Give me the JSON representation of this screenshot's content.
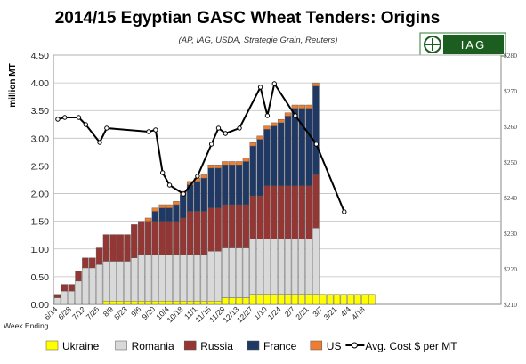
{
  "chart_data": {
    "type": "bar",
    "title": "2014/15 Egyptian GASC Wheat Tenders: Origins",
    "subtitle": "(AP, IAG, USDA, Strategie Grain, Reuters)",
    "logo_text": "IAG",
    "ylabel": "million MT",
    "xlabel": "Week Ending",
    "ylim": [
      0,
      4.5
    ],
    "y_ticks": [
      "0.00",
      "0.50",
      "1.00",
      "1.50",
      "2.00",
      "2.50",
      "3.00",
      "3.50",
      "4.00",
      "4.50"
    ],
    "y2lim": [
      210,
      280
    ],
    "y2_ticks": [
      "$210",
      "$220",
      "$230",
      "$240",
      "$250",
      "$260",
      "$270",
      "$280"
    ],
    "x_tick_labels": [
      "6/14",
      "6/28",
      "7/12",
      "7/26",
      "8/9",
      "8/23",
      "9/6",
      "9/20",
      "10/4",
      "10/18",
      "11/1",
      "11/15",
      "11/29",
      "12/13",
      "12/27",
      "1/10",
      "1/24",
      "2/7",
      "2/21",
      "3/7",
      "3/21",
      "4/4",
      "4/18"
    ],
    "grid": true,
    "legend_position": "bottom",
    "series": [
      {
        "name": "Ukraine",
        "color": "#ffff00",
        "values": [
          0,
          0,
          0,
          0,
          0,
          0,
          0,
          0.06,
          0.06,
          0.06,
          0.06,
          0.06,
          0.06,
          0.06,
          0.06,
          0.06,
          0.06,
          0.06,
          0.06,
          0.06,
          0.06,
          0.06,
          0.06,
          0.06,
          0.12,
          0.12,
          0.12,
          0.12,
          0.18,
          0.18,
          0.18,
          0.18,
          0.18,
          0.18,
          0.18,
          0.18,
          0.18,
          0.18,
          0.18,
          0.18,
          0.18,
          0.18,
          0.18,
          0.18,
          0.18,
          0.18
        ]
      },
      {
        "name": "Romania",
        "color": "#d9d9d9",
        "values": [
          0.12,
          0.24,
          0.24,
          0.42,
          0.66,
          0.66,
          0.72,
          0.72,
          0.72,
          0.72,
          0.72,
          0.78,
          0.84,
          0.84,
          0.84,
          0.84,
          0.84,
          0.84,
          0.84,
          0.84,
          0.84,
          0.84,
          0.9,
          0.9,
          0.9,
          0.9,
          0.9,
          0.9,
          1.0,
          1.0,
          1.0,
          1.0,
          1.0,
          1.0,
          1.0,
          1.0,
          1.0,
          1.2,
          0,
          0,
          0,
          0,
          0,
          0,
          0,
          0
        ]
      },
      {
        "name": "Russia",
        "color": "#943634",
        "values": [
          0.06,
          0.12,
          0.12,
          0.18,
          0.18,
          0.18,
          0.3,
          0.48,
          0.48,
          0.48,
          0.48,
          0.6,
          0.6,
          0.6,
          0.6,
          0.6,
          0.6,
          0.6,
          0.66,
          0.78,
          0.78,
          0.78,
          0.78,
          0.78,
          0.78,
          0.78,
          0.78,
          0.78,
          0.78,
          0.78,
          0.96,
          0.96,
          0.96,
          0.96,
          0.96,
          0.96,
          0.96,
          0.96,
          0,
          0,
          0,
          0,
          0,
          0,
          0,
          0
        ]
      },
      {
        "name": "France",
        "color": "#1f3864",
        "values": [
          0,
          0,
          0,
          0,
          0,
          0,
          0,
          0,
          0,
          0,
          0,
          0,
          0,
          0,
          0.18,
          0.24,
          0.24,
          0.3,
          0.42,
          0.48,
          0.54,
          0.6,
          0.72,
          0.72,
          0.72,
          0.72,
          0.72,
          0.78,
          0.9,
          1.02,
          1.02,
          1.08,
          1.14,
          1.26,
          1.4,
          1.4,
          1.4,
          1.6,
          0,
          0,
          0,
          0,
          0,
          0,
          0,
          0
        ]
      },
      {
        "name": "US",
        "color": "#ed7d31",
        "values": [
          0,
          0,
          0,
          0,
          0,
          0,
          0,
          0,
          0,
          0,
          0,
          0,
          0,
          0.06,
          0.06,
          0.06,
          0.06,
          0.06,
          0.06,
          0.06,
          0.06,
          0.06,
          0.06,
          0.06,
          0.06,
          0.06,
          0.06,
          0.06,
          0.06,
          0.06,
          0.06,
          0.06,
          0.06,
          0.06,
          0.06,
          0.06,
          0.06,
          0.06,
          0,
          0,
          0,
          0,
          0,
          0,
          0,
          0
        ]
      },
      {
        "name": "Avg. Cost $ per MT",
        "color": "#000000",
        "axis": "secondary",
        "points": [
          [
            0,
            262
          ],
          [
            1,
            262.5
          ],
          [
            3,
            262.5
          ],
          [
            4,
            260.5
          ],
          [
            6,
            255.5
          ],
          [
            7,
            259.5
          ],
          [
            13,
            258.5
          ],
          [
            14,
            259
          ],
          [
            15,
            247
          ],
          [
            16,
            243.5
          ],
          [
            18,
            241
          ],
          [
            20,
            246
          ],
          [
            22,
            255
          ],
          [
            23,
            259.5
          ],
          [
            24,
            258
          ],
          [
            26,
            259.5
          ],
          [
            29,
            271
          ],
          [
            30,
            263
          ],
          [
            31,
            272
          ],
          [
            34,
            263
          ],
          [
            37,
            255
          ],
          [
            41,
            236
          ]
        ]
      }
    ]
  }
}
